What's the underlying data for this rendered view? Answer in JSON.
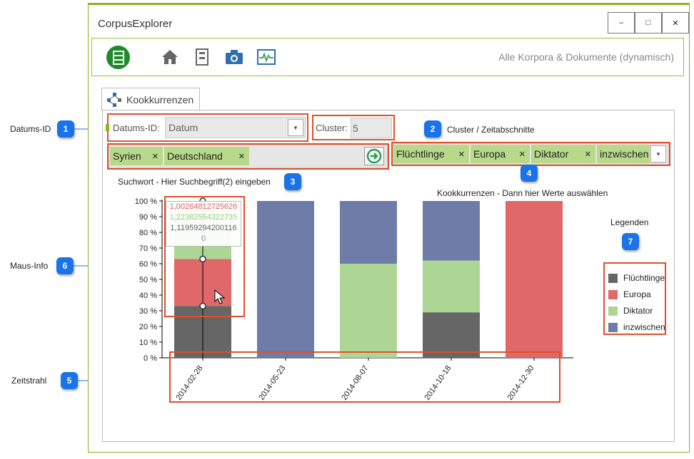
{
  "window": {
    "title": "CorpusExplorer",
    "buttons": {
      "minimize": "–",
      "maximize": "□",
      "close": "✕"
    }
  },
  "toolbar": {
    "right_text": "Alle Korpora & Dokumente (dynamisch)",
    "icons": [
      "database-icon",
      "home-icon",
      "document-icon",
      "camera-icon",
      "monitor-icon"
    ]
  },
  "tab": {
    "label": "Kookkurrenzen",
    "icon": "network-icon"
  },
  "controls": {
    "datums_label": "Datums-ID:",
    "datums_value": "Datum",
    "cluster_label": "Cluster:",
    "cluster_value": "5",
    "search_tags": [
      "Syrien",
      "Deutschland"
    ],
    "value_tags": [
      "Flüchtlinge",
      "Europa",
      "Diktator",
      "inzwischen"
    ]
  },
  "hints": {
    "search": "Suchwort - Hier Suchbegriff(2) eingeben",
    "values": "Kookkurrenzen - Dann hier Werte auswählen",
    "legend_title": "Legenden"
  },
  "callouts": [
    {
      "num": "1",
      "label": "Datums-ID"
    },
    {
      "num": "2",
      "label": "Cluster / Zeitabschnitte"
    },
    {
      "num": "3",
      "label": ""
    },
    {
      "num": "4",
      "label": ""
    },
    {
      "num": "5",
      "label": "Zeitstrahl"
    },
    {
      "num": "6",
      "label": "Maus-Info"
    },
    {
      "num": "7",
      "label": ""
    }
  ],
  "tooltip": {
    "lines": [
      "1,00264812725626",
      "1,22382554322735",
      "1,11959294200116",
      "0"
    ],
    "colors": [
      "#e06666",
      "#9dcf7e",
      "#666666",
      "#8090b8"
    ]
  },
  "colors": {
    "Flüchtlinge": "#666666",
    "Europa": "#e06868",
    "Diktator": "#add694",
    "inzwischen": "#6f7ca8",
    "accent": "#8cb21e",
    "callout": "#1a73e8",
    "highlight": "#e0502a"
  },
  "chart_data": {
    "type": "bar",
    "stacked": true,
    "categories": [
      "2014-02-28",
      "2014-05-23",
      "2014-08-07",
      "2014-10-18",
      "2014-12-30"
    ],
    "series": [
      {
        "name": "Flüchtlinge",
        "values": [
          33,
          0,
          0,
          29,
          0
        ]
      },
      {
        "name": "Europa",
        "values": [
          30,
          0,
          0,
          0,
          100
        ]
      },
      {
        "name": "Diktator",
        "values": [
          37,
          0,
          60,
          33,
          0
        ]
      },
      {
        "name": "inzwischen",
        "values": [
          0,
          100,
          40,
          38,
          0
        ]
      }
    ],
    "yticks": [
      "0 %",
      "10 %",
      "20 %",
      "30 %",
      "40 %",
      "50 %",
      "60 %",
      "70 %",
      "80 %",
      "90 %",
      "100 %"
    ],
    "ylim": [
      0,
      100
    ],
    "legend": "right"
  }
}
